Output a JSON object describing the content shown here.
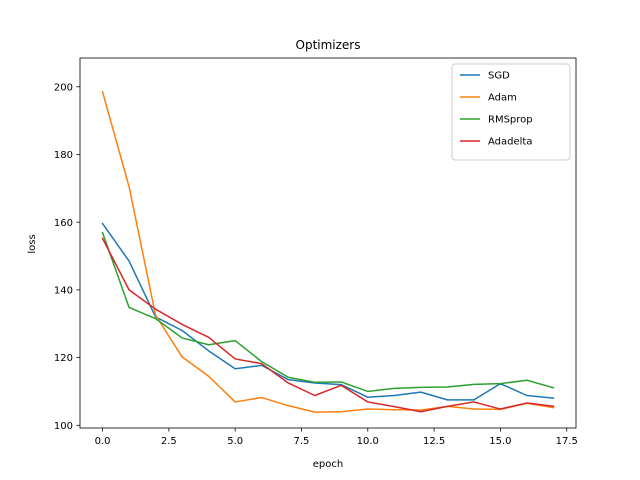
{
  "chart_data": {
    "type": "line",
    "title": "Optimizers",
    "xlabel": "epoch",
    "ylabel": "loss",
    "xlim": [
      -0.85,
      17.85
    ],
    "ylim": [
      99.2,
      208.5
    ],
    "x_ticks": [
      0.0,
      2.5,
      5.0,
      7.5,
      10.0,
      12.5,
      15.0,
      17.5
    ],
    "x_tick_labels": [
      "0.0",
      "2.5",
      "5.0",
      "7.5",
      "10.0",
      "12.5",
      "15.0",
      "17.5"
    ],
    "y_ticks": [
      100,
      120,
      140,
      160,
      180,
      200
    ],
    "y_tick_labels": [
      "100",
      "120",
      "140",
      "160",
      "180",
      "200"
    ],
    "grid": false,
    "legend_position": "top-right",
    "x": [
      0,
      1,
      2,
      3,
      4,
      5,
      6,
      7,
      8,
      9,
      10,
      11,
      12,
      13,
      14,
      15,
      16,
      17
    ],
    "series": [
      {
        "name": "SGD",
        "color": "#1f77b4",
        "values": [
          159.6,
          148.5,
          132.0,
          128.0,
          122.0,
          116.7,
          117.7,
          113.5,
          112.5,
          112.0,
          108.3,
          108.8,
          109.8,
          107.5,
          107.5,
          112.3,
          108.8,
          108.0
        ]
      },
      {
        "name": "Adam",
        "color": "#ff7f0e",
        "values": [
          198.5,
          170.5,
          132.5,
          120.2,
          114.5,
          106.9,
          108.2,
          105.8,
          103.9,
          104.0,
          104.8,
          104.6,
          104.5,
          105.6,
          104.8,
          104.7,
          106.5,
          105.2
        ]
      },
      {
        "name": "RMSprop",
        "color": "#2ca02c",
        "values": [
          156.9,
          134.8,
          131.5,
          125.8,
          123.8,
          125.0,
          118.8,
          114.2,
          112.7,
          112.8,
          110.0,
          110.9,
          111.2,
          111.3,
          112.1,
          112.3,
          113.3,
          111.1
        ]
      },
      {
        "name": "Adadelta",
        "color": "#d62728",
        "values": [
          155.2,
          140.0,
          134.3,
          129.8,
          126.0,
          119.6,
          118.2,
          112.5,
          108.8,
          111.8,
          106.9,
          105.5,
          104.0,
          105.6,
          106.9,
          104.8,
          106.6,
          105.6
        ]
      }
    ]
  }
}
